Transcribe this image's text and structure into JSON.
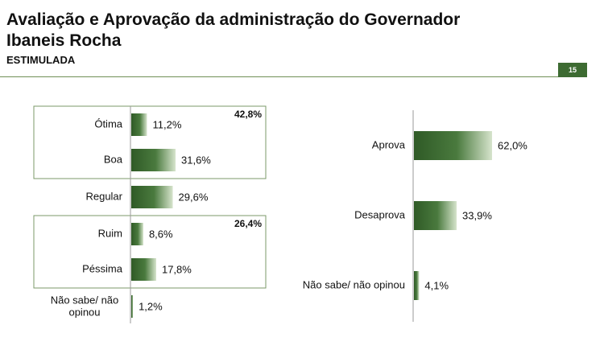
{
  "header": {
    "title": "Avaliação e Aprovação da administração do Governador Ibaneis Rocha",
    "subtitle": "ESTIMULADA",
    "page_number": "15"
  },
  "colors": {
    "bar_dark": "#2f5a26",
    "bar_light": "#d6e4cc",
    "accent": "#3d6b32"
  },
  "chart_data": [
    {
      "type": "bar",
      "orientation": "horizontal",
      "categories": [
        "Ótima",
        "Boa",
        "Regular",
        "Ruim",
        "Péssima",
        "Não sabe/ não opinou"
      ],
      "values": [
        11.2,
        31.6,
        29.6,
        8.6,
        17.8,
        1.2
      ],
      "value_labels": [
        "11,2%",
        "31,6%",
        "29,6%",
        "8,6%",
        "17,8%",
        "1,2%"
      ],
      "groups": [
        {
          "members": [
            "Ótima",
            "Boa"
          ],
          "total_label": "42,8%"
        },
        {
          "members": [
            "Ruim",
            "Péssima"
          ],
          "total_label": "26,4%"
        }
      ]
    },
    {
      "type": "bar",
      "orientation": "horizontal",
      "categories": [
        "Aprova",
        "Desaprova",
        "Não sabe/ não opinou"
      ],
      "values": [
        62.0,
        33.9,
        4.1
      ],
      "value_labels": [
        "62,0%",
        "33,9%",
        "4,1%"
      ]
    }
  ]
}
